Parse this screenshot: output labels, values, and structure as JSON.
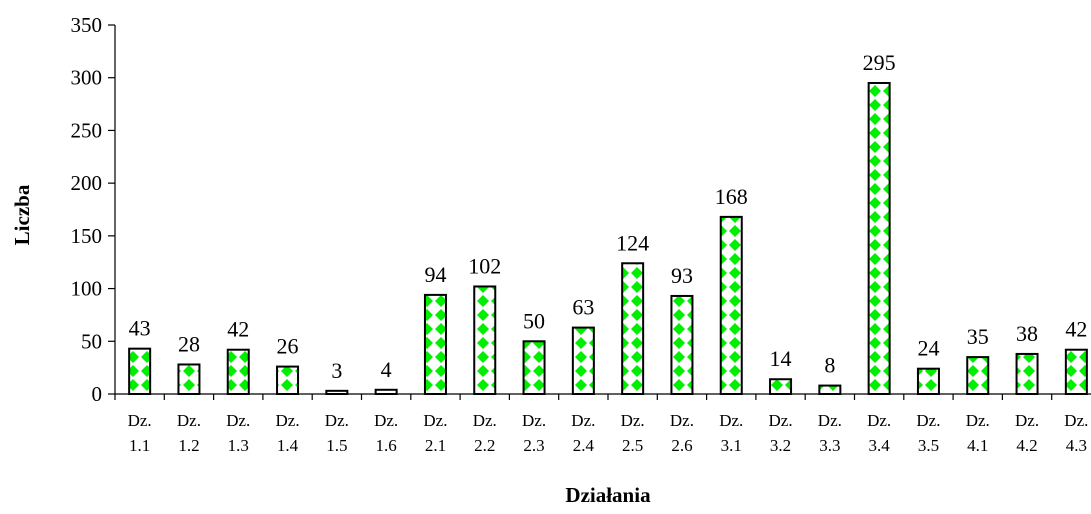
{
  "chart_data": {
    "type": "bar",
    "title": "",
    "xlabel": "Działania",
    "ylabel": "Liczba",
    "ylim": [
      0,
      350
    ],
    "yticks": [
      0,
      50,
      100,
      150,
      200,
      250,
      300,
      350
    ],
    "grid": false,
    "legend": "none",
    "categories": [
      [
        "Dz.",
        "1.1"
      ],
      [
        "Dz.",
        "1.2"
      ],
      [
        "Dz.",
        "1.3"
      ],
      [
        "Dz.",
        "1.4"
      ],
      [
        "Dz.",
        "1.5"
      ],
      [
        "Dz.",
        "1.6"
      ],
      [
        "Dz.",
        "2.1"
      ],
      [
        "Dz.",
        "2.2"
      ],
      [
        "Dz.",
        "2.3"
      ],
      [
        "Dz.",
        "2.4"
      ],
      [
        "Dz.",
        "2.5"
      ],
      [
        "Dz.",
        "2.6"
      ],
      [
        "Dz.",
        "3.1"
      ],
      [
        "Dz.",
        "3.2"
      ],
      [
        "Dz.",
        "3.3"
      ],
      [
        "Dz.",
        "3.4"
      ],
      [
        "Dz.",
        "3.5"
      ],
      [
        "Dz.",
        "4.1"
      ],
      [
        "Dz.",
        "4.2"
      ],
      [
        "Dz.",
        "4.3"
      ]
    ],
    "values": [
      43,
      28,
      42,
      26,
      3,
      4,
      94,
      102,
      50,
      63,
      124,
      93,
      168,
      14,
      8,
      295,
      24,
      35,
      38,
      42
    ],
    "data_labels": [
      "43",
      "28",
      "42",
      "26",
      "3",
      "4",
      "94",
      "102",
      "50",
      "63",
      "124",
      "93",
      "168",
      "14",
      "8",
      "295",
      "24",
      "35",
      "38",
      "42"
    ],
    "colors": {
      "bar_fill": "#00ff00",
      "bar_pattern": "#ffffff",
      "bar_stroke": "#000000",
      "axis": "#000000"
    }
  }
}
